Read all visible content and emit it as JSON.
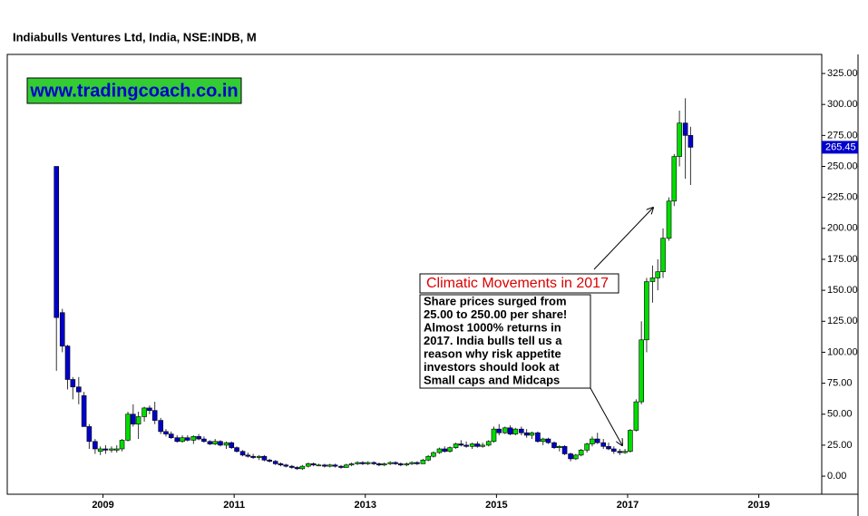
{
  "chart_data": {
    "type": "candlestick",
    "title": "Indiabulls Ventures Ltd, India, NSE:INDB, M",
    "watermark": "www.tradingcoach.co.in",
    "callout_title": "Climatic Movements in 2017",
    "callout_lines": [
      "Share prices surged from",
      "25.00 to 250.00 per share!",
      "Almost 1000% returns in",
      "2017. India bulls tell us a",
      "reason why risk appetite",
      "investors should look at",
      "Small caps and Midcaps"
    ],
    "last_price": 265.45,
    "up_color": "#00dd00",
    "down_color": "#0000cc",
    "xlim": [
      2007.54,
      2019.96
    ],
    "ylim": [
      -14.6,
      340.4
    ],
    "xticks": [
      2009,
      2011,
      2013,
      2015,
      2017,
      2019
    ],
    "yticks": [
      {
        "value": 0,
        "label": "0.00"
      },
      {
        "value": 25,
        "label": "25.00"
      },
      {
        "value": 50,
        "label": "50.00"
      },
      {
        "value": 75,
        "label": "75.00"
      },
      {
        "value": 100,
        "label": "100.00"
      },
      {
        "value": 125,
        "label": "125.00"
      },
      {
        "value": 150,
        "label": "150.00"
      },
      {
        "value": 175,
        "label": "175.00"
      },
      {
        "value": 200,
        "label": "200.00"
      },
      {
        "value": 225,
        "label": "225.00"
      },
      {
        "value": 250,
        "label": "250.00"
      },
      {
        "value": 275,
        "label": "275.00"
      },
      {
        "value": 300,
        "label": "300.00"
      },
      {
        "value": 325,
        "label": "325.00"
      }
    ],
    "x": [
      2008.29,
      2008.38,
      2008.46,
      2008.54,
      2008.63,
      2008.71,
      2008.79,
      2008.88,
      2008.96,
      2009.04,
      2009.13,
      2009.21,
      2009.29,
      2009.38,
      2009.46,
      2009.54,
      2009.63,
      2009.71,
      2009.79,
      2009.88,
      2009.96,
      2010.04,
      2010.13,
      2010.21,
      2010.29,
      2010.38,
      2010.46,
      2010.54,
      2010.63,
      2010.71,
      2010.79,
      2010.88,
      2010.96,
      2011.04,
      2011.13,
      2011.21,
      2011.29,
      2011.38,
      2011.46,
      2011.54,
      2011.63,
      2011.71,
      2011.79,
      2011.88,
      2011.96,
      2012.04,
      2012.13,
      2012.21,
      2012.29,
      2012.38,
      2012.46,
      2012.54,
      2012.63,
      2012.71,
      2012.79,
      2012.88,
      2012.96,
      2013.04,
      2013.13,
      2013.21,
      2013.29,
      2013.38,
      2013.46,
      2013.54,
      2013.63,
      2013.71,
      2013.79,
      2013.88,
      2013.96,
      2014.04,
      2014.13,
      2014.21,
      2014.29,
      2014.38,
      2014.46,
      2014.54,
      2014.63,
      2014.71,
      2014.79,
      2014.88,
      2014.96,
      2015.04,
      2015.13,
      2015.21,
      2015.29,
      2015.38,
      2015.46,
      2015.54,
      2015.63,
      2015.71,
      2015.79,
      2015.88,
      2015.96,
      2016.04,
      2016.13,
      2016.21,
      2016.29,
      2016.38,
      2016.46,
      2016.54,
      2016.63,
      2016.71,
      2016.79,
      2016.88,
      2016.96,
      2017.04,
      2017.13,
      2017.21,
      2017.29,
      2017.38,
      2017.46,
      2017.54,
      2017.63,
      2017.71,
      2017.79,
      2017.88,
      2017.96
    ],
    "open": [
      250,
      132,
      105,
      78,
      72,
      65,
      40,
      28,
      20,
      22,
      21,
      21,
      22,
      29,
      50,
      42,
      48,
      55,
      53,
      45,
      36,
      34,
      31,
      28,
      31,
      29,
      32,
      30,
      28,
      26,
      28,
      25,
      27,
      23,
      20,
      17,
      16,
      15,
      16,
      13,
      12,
      10,
      9,
      8,
      7,
      6,
      8,
      10,
      9,
      9,
      8,
      9,
      8,
      7,
      9,
      10,
      11,
      10,
      11,
      10,
      9,
      10,
      11,
      10,
      9,
      10,
      11,
      10,
      13,
      16,
      19,
      22,
      20,
      23,
      26,
      25,
      24,
      26,
      24,
      25,
      28,
      38,
      35,
      39,
      34,
      38,
      35,
      33,
      35,
      28,
      30,
      27,
      23,
      24,
      18,
      14,
      17,
      21,
      26,
      30,
      27,
      24,
      22,
      20,
      19,
      20,
      37,
      60,
      110,
      157,
      160,
      165,
      192,
      222,
      258,
      285,
      275
    ],
    "high": [
      250,
      135,
      106,
      80,
      80,
      68,
      42,
      30,
      24,
      25,
      24,
      25,
      30,
      52,
      58,
      52,
      56,
      57,
      60,
      47,
      38,
      36,
      33,
      33,
      33,
      33,
      34,
      32,
      29,
      30,
      29,
      28,
      28,
      24,
      21,
      19,
      18,
      17,
      17,
      14,
      13,
      11,
      10,
      9,
      8,
      9,
      11,
      11,
      10,
      10,
      10,
      10,
      9,
      10,
      11,
      12,
      12,
      12,
      12,
      11,
      11,
      12,
      12,
      11,
      11,
      12,
      12,
      14,
      17,
      20,
      23,
      24,
      24,
      27,
      29,
      28,
      27,
      28,
      27,
      29,
      40,
      42,
      40,
      41,
      39,
      40,
      38,
      36,
      36,
      31,
      31,
      28,
      25,
      25,
      19,
      18,
      22,
      27,
      32,
      35,
      30,
      27,
      24,
      22,
      22,
      38,
      62,
      125,
      160,
      170,
      175,
      200,
      225,
      260,
      295,
      305,
      282
    ],
    "low": [
      85,
      100,
      70,
      62,
      58,
      40,
      22,
      18,
      17,
      18,
      19,
      19,
      20,
      28,
      40,
      30,
      44,
      50,
      42,
      34,
      32,
      30,
      27,
      27,
      28,
      26,
      29,
      27,
      25,
      25,
      24,
      22,
      22,
      19,
      16,
      15,
      14,
      13,
      12,
      11,
      9,
      8,
      7,
      6,
      5,
      5,
      7,
      8,
      8,
      7,
      7,
      7,
      6,
      7,
      8,
      9,
      9,
      9,
      9,
      8,
      8,
      9,
      9,
      8,
      8,
      9,
      9,
      10,
      12,
      15,
      18,
      19,
      19,
      22,
      24,
      23,
      22,
      23,
      23,
      24,
      27,
      33,
      34,
      33,
      33,
      33,
      31,
      30,
      27,
      25,
      26,
      22,
      20,
      17,
      12,
      13,
      16,
      19,
      24,
      26,
      22,
      21,
      18,
      17,
      18,
      19,
      36,
      58,
      100,
      140,
      150,
      160,
      190,
      218,
      250,
      240,
      235
    ],
    "close": [
      128,
      105,
      78,
      72,
      68,
      40,
      28,
      22,
      22,
      21,
      22,
      22,
      29,
      50,
      42,
      48,
      55,
      53,
      45,
      36,
      34,
      31,
      28,
      31,
      29,
      32,
      30,
      28,
      26,
      28,
      25,
      27,
      23,
      20,
      17,
      16,
      15,
      16,
      13,
      12,
      10,
      9,
      8,
      7,
      6,
      8,
      10,
      9,
      9,
      8,
      9,
      8,
      7,
      9,
      10,
      11,
      10,
      11,
      10,
      9,
      10,
      11,
      10,
      9,
      10,
      11,
      10,
      13,
      16,
      19,
      22,
      20,
      23,
      26,
      25,
      24,
      26,
      24,
      25,
      28,
      38,
      35,
      39,
      34,
      38,
      35,
      33,
      35,
      28,
      30,
      27,
      23,
      24,
      18,
      14,
      17,
      21,
      26,
      30,
      27,
      24,
      22,
      20,
      19,
      20,
      37,
      60,
      110,
      157,
      160,
      165,
      192,
      222,
      258,
      285,
      275,
      265.45
    ]
  }
}
